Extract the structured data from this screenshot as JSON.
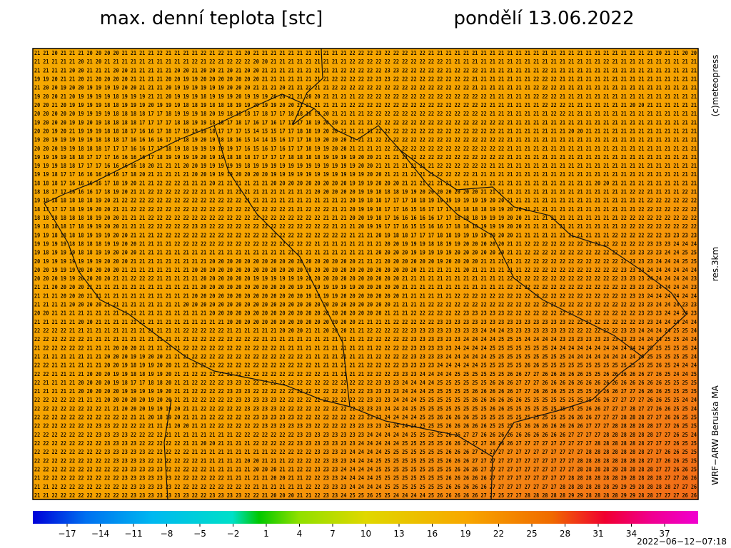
{
  "header": {
    "title": "max. denní teplota [stc]",
    "date": "pondělí 13.06.2022"
  },
  "side": {
    "copyright": "(c)meteopress",
    "resolution": "res.3km",
    "model": "WRF−ARW Beruska MA"
  },
  "timestamp": "2022−06−12−07:18",
  "colorbar": {
    "labels": [
      "−17",
      "−14",
      "−11",
      "−8",
      "−5",
      "−2",
      "1",
      "4",
      "7",
      "10",
      "13",
      "16",
      "19",
      "22",
      "25",
      "28",
      "31",
      "34",
      "37"
    ]
  },
  "grid": {
    "rows": [
      "21 21 20 21 21 21 20 20 20 20 21 21 21 21 22 21 21 21 21 22 21 22 21 21 20 21 21 21 21 21 21 21 21 21 21 21 22 22 22 23 22 22 22 21 22 21 21 21 21 21 21 21 21 21 21 21 21 21 21 21 21 21 21 21 21 21 21 21 21 21 21 20 21 21 20 20",
      "21 21 21 21 21 20 21 20 21 21 21 21 21 21 21 21 21 21 22 21 22 21 22 22 22 20 20 21 21 21 21 21 21 21 21 21 22 22 22 22 22 22 22 22 22 22 22 21 21 21 21 21 21 21 21 21 21 21 21 21 21 21 21 21 21 22 21 21 21 21 21 21 21 21 21 21",
      "21 21 21 21 20 20 21 21 21 20 20 21 21 21 21 21 20 20 21 20 20 21 20 21 20 20 21 21 21 21 21 21 21 21 21 22 22 22 22 22 23 23 22 22 22 22 22 21 22 22 22 21 21 21 21 21 21 21 22 21 21 21 21 21 21 21 21 21 21 21 21 21 21 21 21 21",
      "19 19 20 21 21 20 21 20 20 20 20 21 21 21 21 20 20 19 19 20 20 20 20 20 20 20 21 21 21 21 21 21 21 21 22 22 22 22 22 23 23 22 22 22 22 22 22 22 22 22 21 21 21 21 21 21 21 22 22 22 21 21 21 21 21 21 21 21 21 21 21 21 21 21 21 21",
      "21 20 20 19 20 20 19 19 19 19 20 20 21 21 21 20 19 19 19 19 19 19 20 20 20 21 21 21 20 21 21 22 21 21 22 22 22 22 22 22 22 22 22 22 22 22 22 22 22 22 21 21 21 21 21 21 21 22 22 22 21 21 21 21 21 21 21 21 21 21 21 21 21 21 21 21",
      "19 20 20 21 20 19 19 19 19 18 19 19 19 21 21 20 19 19 19 18 19 19 19 20 19 19 19 20 20 21 21 20 20 21 21 21 21 22 22 22 22 22 22 22 22 22 22 22 22 22 22 22 21 21 21 21 21 22 22 22 21 21 21 21 21 21 21 21 21 21 21 21 21 21 21 21",
      "20 20 21 20 19 19 19 19 18 18 19 19 19 20 19 19 19 18 18 19 18 18 18 19 19 20 19 19 20 20 21 21 21 21 21 21 22 22 22 22 22 22 22 22 22 22 22 22 22 22 22 22 21 21 21 21 21 21 22 22 22 21 21 21 21 21 21 21 20 20 21 21 21 21 21 21",
      "20 20 20 20 20 19 19 19 19 18 18 18 18 17 17 18 19 19 19 18 20 19 18 18 18 17 18 17 17 18 18 18 19 20 21 21 21 21 22 22 22 22 22 22 22 22 22 22 22 22 22 22 21 21 21 21 21 21 21 22 22 21 21 21 21 21 21 21 21 21 21 21 21 21 21 21",
      "19 20 20 20 19 19 20 19 18 18 18 18 17 17 17 17 18 18 19 19 18 18 17 18 17 16 17 16 17 17 17 18 19 20 20 21 21 21 21 22 22 22 22 22 22 22 22 22 22 22 22 22 22 22 21 21 21 21 21 21 21 21 21 21 21 21 21 21 21 21 21 21 21 21 21 21",
      "20 20 19 20 21 19 19 19 18 18 18 17 16 16 17 18 17 19 19 19 18 17 17 17 15 14 15 15 17 17 18 18 19 20 20 21 21 21 21 22 22 22 22 22 22 22 22 22 22 22 22 22 22 21 21 21 21 21 21 21 21 20 20 21 21 21 21 21 21 21 21 21 21 21 21 21",
      "19 20 19 19 19 19 19 18 18 18 17 16 16 16 16 17 17 18 19 20 19 18 18 16 15 14 14 15 16 17 17 18 19 20 20 20 21 21 21 22 22 22 22 22 22 22 22 22 22 22 22 22 22 22 21 21 21 21 21 21 21 21 21 21 21 21 21 21 21 21 21 21 21 21 21 21",
      "20 20 20 19 19 18 18 18 17 17 17 16 16 17 17 18 19 18 19 19 19 19 19 17 16 15 16 17 16 17 17 18 19 19 20 20 21 21 21 21 22 22 22 22 22 22 22 22 22 22 22 22 22 22 21 21 21 21 21 21 21 21 21 21 21 21 21 21 21 21 21 21 21 21 21 21",
      "19 19 19 19 18 18 17 17 17 16 16 16 16 17 18 19 19 19 19 20 19 19 18 18 18 17 17 17 17 18 18 18 18 19 19 19 19 20 20 21 21 21 21 22 22 22 22 22 22 22 22 22 22 22 21 21 21 21 21 21 21 21 21 21 21 21 21 21 21 21 21 21 21 21 21 21",
      "19 19 19 18 18 17 17 17 16 16 16 16 18 20 21 21 21 20 20 19 19 19 19 19 18 19 19 19 19 19 19 19 19 19 19 19 19 20 20 21 21 21 21 21 21 21 22 22 22 22 22 22 21 21 21 21 21 21 21 21 21 21 21 21 21 21 21 21 21 21 21 21 21 21 21 21",
      "19 19 18 17 17 16 16 16 16 16 17 18 20 21 21 21 21 21 20 20 19 19 19 20 20 20 20 19 19 19 19 19 19 19 19 19 19 19 20 20 21 21 21 21 21 21 22 22 22 22 21 21 21 21 21 21 21 21 21 21 21 21 21 21 21 21 21 21 21 21 21 21 21 21 21 21",
      "18 18 18 17 16 16 16 16 17 18 19 20 21 21 22 22 22 21 21 21 20 21 21 21 21 21 21 20 20 20 20 20 20 20 20 20 19 19 19 20 20 20 21 21 21 21 21 21 21 21 21 21 21 21 21 21 21 21 21 21 21 21 21 21 20 20 21 21 21 21 21 21 21 21 21 21",
      "18 18 17 17 16 16 16 17 18 19 20 21 21 22 22 22 22 22 22 21 21 21 21 21 21 21 21 21 21 21 21 21 20 20 20 20 20 19 19 18 18 18 19 19 20 20 20 20 20 20 20 21 21 21 21 21 21 21 21 21 21 21 21 21 21 21 21 21 22 22 21 21 21 21 22 21",
      "19 18 18 18 18 18 18 19 20 21 22 22 22 22 22 22 22 22 22 22 22 22 22 22 21 21 21 21 21 21 21 21 21 21 21 21 20 19 18 18 17 17 17 18 18 19 19 19 19 19 19 19 20 20 21 21 21 21 21 21 21 21 21 21 21 21 21 21 21 21 22 22 22 22 22 22",
      "18 17 17 17 18 19 19 20 20 21 21 22 22 22 22 22 22 22 22 22 22 22 22 22 22 22 22 22 22 21 21 22 22 22 21 21 20 19 19 18 17 17 16 15 16 17 17 17 18 18 18 18 19 19 20 20 21 21 21 21 21 21 21 21 21 21 21 21 21 22 22 22 22 22 22 22",
      "18 18 18 18 18 18 18 19 20 20 21 21 21 22 22 22 22 22 22 22 22 22 22 22 22 22 22 22 22 22 22 22 22 21 21 21 20 20 19 18 17 16 16 16 16 16 17 17 18 18 18 19 19 19 20 20 21 21 21 21 21 21 21 21 21 21 21 22 22 22 22 22 22 22 22 22",
      "19 18 18 18 17 18 19 19 20 20 21 21 21 22 22 22 22 22 23 23 22 22 22 22 22 22 22 22 22 22 22 22 22 22 21 21 21 20 19 19 17 17 16 15 15 16 16 17 18 18 18 19 19 19 20 20 21 21 21 21 21 21 21 21 21 21 21 22 22 22 22 22 22 22 22 22",
      "19 19 18 18 18 18 19 19 19 20 20 21 21 21 22 22 22 22 22 22 22 22 22 22 22 22 22 22 22 22 22 22 22 22 22 22 21 21 21 20 19 18 18 17 17 17 18 18 19 19 19 19 20 20 20 21 21 21 21 21 21 21 21 21 21 21 22 22 22 22 22 22 23 23 23 23",
      "19 19 19 19 18 18 18 18 19 19 20 20 21 21 21 21 22 22 22 22 22 22 22 22 22 22 22 22 22 22 22 22 21 21 21 21 21 21 21 21 20 20 19 19 19 18 18 19 19 20 20 20 20 20 21 21 22 22 22 22 22 22 22 22 22 22 22 22 22 22 23 23 23 24 24 24",
      "19 18 19 19 19 18 18 19 19 20 20 20 21 21 21 21 21 21 21 21 21 21 21 21 21 21 21 21 21 21 21 21 21 21 21 21 21 21 21 20 20 20 20 19 19 19 19 19 20 20 20 20 20 20 21 21 22 22 22 22 22 22 22 22 22 22 22 22 23 23 23 23 24 24 25 25",
      "20 19 19 19 19 19 19 19 20 20 20 21 21 21 21 21 21 21 21 21 20 20 20 20 20 20 20 20 20 20 20 20 20 20 20 20 20 21 21 21 20 20 20 20 20 20 19 20 20 20 20 21 21 21 21 21 22 22 22 22 22 22 22 22 22 22 22 22 23 23 23 24 24 24 25 25",
      "20 20 19 19 19 20 20 20 20 20 21 21 21 21 21 21 21 21 20 20 20 20 20 20 20 20 20 20 20 20 20 20 20 20 20 20 20 20 20 20 20 20 20 20 21 21 21 21 21 20 21 21 21 21 21 21 22 22 22 22 22 22 22 22 22 22 22 23 23 23 24 24 24 24 24 24",
      "20 20 20 19 19 20 20 20 20 21 21 22 22 22 21 21 21 21 21 20 20 20 20 20 20 19 19 19 19 19 19 20 20 20 20 20 20 20 20 20 20 20 21 21 21 21 21 21 21 21 21 21 21 21 22 22 22 22 22 22 22 22 22 22 22 22 22 23 23 23 24 24 24 24 24 23",
      "21 21 20 20 20 20 21 21 21 21 21 21 21 21 21 21 21 21 21 20 20 20 20 20 20 20 20 20 20 20 19 19 19 19 19 19 19 20 20 20 20 20 21 21 21 21 21 21 21 21 21 21 21 21 22 22 22 22 22 22 22 22 22 22 22 22 22 22 23 23 23 24 24 24 24 23",
      "21 21 21 20 20 20 21 21 21 21 21 21 21 21 21 21 21 21 20 20 20 20 20 20 20 20 20 20 20 20 20 19 19 19 19 20 20 20 20 20 20 20 21 21 21 21 21 21 22 22 22 22 22 22 22 22 22 22 22 22 22 22 22 22 22 22 22 22 23 23 24 24 24 24 24 24",
      "21 21 21 21 20 20 20 20 21 21 21 21 21 21 21 21 21 20 20 20 20 20 20 20 20 20 20 20 20 20 20 20 20 20 20 20 20 20 20 20 20 21 21 21 21 22 22 22 22 22 22 22 22 22 22 22 22 22 22 22 22 22 22 22 22 22 22 22 22 23 23 24 24 24 23 23",
      "20 20 21 21 21 21 21 21 21 21 21 21 21 21 21 21 21 21 21 21 20 20 20 20 20 20 20 20 20 20 20 20 20 20 20 20 20 20 20 20 21 21 21 22 22 22 22 22 22 23 23 23 23 23 22 22 22 22 22 22 22 22 22 22 22 22 22 22 22 23 23 23 24 24 24 23",
      "21 21 21 21 21 20 20 21 21 21 21 21 21 21 21 21 21 21 21 21 21 21 20 20 20 20 20 20 20 20 20 20 20 20 20 20 20 21 21 21 21 22 22 22 22 22 23 23 23 23 23 23 23 23 23 23 23 23 23 23 23 22 22 22 22 22 22 22 22 23 23 24 24 24 24 24",
      "22 22 22 22 21 21 21 21 21 21 21 21 21 21 21 21 21 22 22 22 22 22 21 21 21 21 21 21 20 20 20 21 21 20 20 20 21 21 22 22 22 22 22 23 23 23 23 23 23 23 23 24 24 24 23 23 23 23 23 23 23 22 22 22 22 22 22 23 23 24 24 24 24 25 25 24",
      "22 22 22 22 22 22 21 21 21 21 21 21 21 21 21 21 21 21 22 22 22 22 22 22 22 22 21 21 21 21 21 21 21 21 21 21 21 21 22 22 22 22 22 23 23 23 23 23 23 24 24 24 24 25 25 25 24 24 24 24 23 23 23 23 23 23 23 23 23 24 24 24 25 25 24 24",
      "21 22 22 22 22 22 21 21 21 20 20 20 21 21 21 21 21 22 22 22 22 22 22 22 22 22 22 22 21 21 21 21 21 21 21 21 21 21 21 22 22 22 22 23 23 23 23 23 24 24 24 24 25 25 25 25 25 25 25 24 24 24 24 24 24 24 24 24 24 24 25 25 25 25 25 24",
      "21 21 21 21 21 21 21 21 20 20 20 19 19 20 20 21 21 21 22 22 22 22 22 22 22 22 22 22 22 22 22 21 21 21 21 21 21 21 21 22 22 22 22 23 23 23 23 24 24 24 24 24 25 25 25 25 25 25 25 25 25 24 24 24 24 24 24 24 24 25 25 25 25 25 25 24",
      "22 22 21 21 21 21 21 21 20 20 19 18 19 19 20 20 21 21 22 22 22 22 22 22 22 22 22 22 22 22 22 22 21 21 21 21 21 21 22 22 22 22 23 23 23 23 24 24 24 24 24 25 25 25 25 25 26 26 25 25 25 25 25 25 25 25 25 25 25 25 25 26 25 24 24 24",
      "22 22 21 21 21 21 20 20 20 19 19 18 18 19 19 20 21 21 22 22 22 22 22 22 22 22 22 22 22 22 22 22 22 21 21 21 21 21 22 22 22 23 23 23 24 24 24 24 25 25 25 25 25 25 26 26 27 27 26 26 26 26 26 25 25 26 26 26 26 26 27 26 25 24 24 25",
      "22 21 21 21 21 20 20 20 20 19 18 17 17 18 18 20 21 21 22 22 22 22 23 23 22 22 22 22 22 22 22 22 22 22 22 22 22 22 22 23 23 23 24 24 24 24 25 25 25 25 25 25 26 26 26 27 27 27 26 26 26 26 26 26 26 26 26 26 26 26 26 26 25 25 25 25",
      "21 21 21 21 21 20 20 20 20 20 19 19 19 19 19 20 21 21 22 22 22 22 23 23 23 22 22 22 22 22 22 22 22 22 22 22 22 22 23 23 23 23 24 24 24 25 25 25 25 25 26 26 26 26 26 27 27 26 26 26 25 25 25 25 26 26 26 27 27 26 26 26 25 25 25 25",
      "22 22 22 22 22 21 21 21 20 20 20 20 20 19 20 20 21 21 22 22 22 22 22 23 23 23 23 23 22 22 22 22 22 22 22 22 22 22 23 23 23 24 24 24 25 25 25 25 25 25 26 26 26 26 26 26 25 25 25 25 25 25 25 25 26 26 27 27 27 27 26 26 25 25 24 24",
      "22 22 22 22 22 22 22 22 21 21 20 20 20 19 19 19 20 21 21 22 22 22 22 22 23 23 23 23 22 22 22 22 22 22 22 22 22 23 23 23 24 24 24 25 25 25 25 25 25 25 25 25 26 26 25 25 25 25 25 25 25 25 25 26 26 27 27 27 28 27 27 26 26 25 25 24",
      "22 22 22 22 22 22 22 22 22 22 22 21 21 20 18 19 20 21 21 21 22 22 22 22 22 23 23 23 23 23 22 22 22 22 22 22 22 23 23 23 24 24 24 24 25 25 26 26 26 26 25 25 25 25 25 25 25 25 25 25 25 26 26 26 27 27 27 28 28 28 27 27 26 26 25 25",
      "22 22 22 22 22 22 22 23 23 22 22 22 22 21 21 21 20 20 21 21 22 22 22 22 22 22 23 23 23 23 23 23 22 22 22 22 23 23 23 23 24 24 24 24 25 25 25 26 26 26 26 26 25 25 25 25 26 26 26 26 26 26 26 27 27 27 28 28 28 28 28 27 27 26 25 25",
      "22 22 22 22 22 22 22 23 23 23 23 22 22 22 22 21 21 21 21 21 21 21 21 22 22 22 22 22 22 22 23 23 23 23 23 23 23 23 24 24 24 24 24 25 25 25 25 26 26 27 27 26 26 26 26 26 26 26 26 26 26 27 27 27 27 28 28 28 28 28 28 27 27 26 25 24",
      "22 22 22 22 22 22 22 22 23 23 23 23 22 22 22 22 22 21 21 20 20 21 21 21 21 22 22 22 22 22 23 23 23 23 23 23 23 24 24 24 24 24 25 25 25 25 25 26 26 27 27 27 26 26 26 27 27 27 27 27 27 27 27 27 28 28 28 28 28 28 27 27 27 26 25 25",
      "22 22 22 22 22 22 22 22 23 23 23 23 23 22 22 22 22 22 21 21 21 21 21 21 21 21 21 22 22 22 22 22 23 23 23 23 24 24 24 24 25 25 25 25 25 25 25 26 26 26 27 27 27 27 27 27 27 27 27 27 27 27 27 28 28 28 28 28 28 28 27 27 26 26 25 25",
      "22 22 22 22 22 22 22 22 22 23 23 23 23 22 22 22 22 22 22 21 21 21 21 21 20 20 21 21 21 22 22 22 22 23 23 23 24 24 24 25 25 25 25 25 25 25 25 26 26 26 27 27 27 27 27 27 27 27 27 27 27 27 28 28 28 28 28 28 28 28 27 27 26 26 25 25",
      "22 22 22 22 22 22 22 22 22 22 23 23 23 23 23 22 22 22 22 22 21 21 21 21 21 20 20 20 21 21 22 22 23 23 23 24 24 24 24 25 25 25 25 25 25 25 25 25 26 26 26 27 27 27 27 27 27 27 27 27 27 27 28 28 28 28 29 28 28 28 28 27 27 26 26 25",
      "21 22 22 22 22 22 22 22 22 22 23 23 23 23 23 23 22 22 22 22 22 22 21 21 21 21 21 20 20 21 21 22 22 23 23 24 24 24 24 25 25 25 25 25 25 25 25 26 26 26 26 26 27 27 27 27 27 27 27 27 27 28 28 28 28 28 28 29 28 28 28 28 27 27 26 26",
      "21 21 22 22 22 22 22 22 22 22 22 23 23 23 23 23 22 22 22 22 22 22 22 22 22 21 21 21 21 21 21 22 22 23 23 23 24 24 24 24 25 25 25 25 25 25 25 26 26 26 26 26 27 27 27 27 27 27 27 27 28 28 28 28 28 28 29 29 29 28 28 28 28 27 27 26",
      "21 21 22 22 22 22 22 22 22 22 22 23 23 23 23 23 23 23 22 22 23 23 23 23 22 22 21 20 20 20 21 21 22 23 23 24 25 25 26 25 25 24 24 24 24 25 26 26 26 26 26 27 27 25 27 27 28 28 28 28 28 29 29 28 28 28 28 29 29 28 28 27 27 27 26 26"
    ]
  }
}
